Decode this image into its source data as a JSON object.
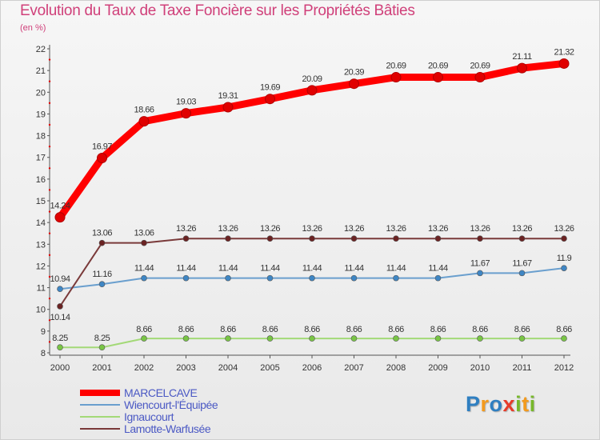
{
  "header": {
    "title": "Evolution du Taux de Taxe Foncière sur les Propriétés Bâties",
    "unit": "(en %)"
  },
  "chart_data": {
    "type": "line",
    "title": "Evolution du Taux de Taxe Foncière sur les Propriétés Bâties",
    "ylabel": "(en %)",
    "xlabel": "",
    "categories": [
      "2000",
      "2001",
      "2002",
      "2003",
      "2004",
      "2005",
      "2006",
      "2007",
      "2008",
      "2009",
      "2010",
      "2011",
      "2012"
    ],
    "ylim": [
      8,
      22
    ],
    "yticks": [
      8,
      9,
      10,
      11,
      12,
      13,
      14,
      15,
      16,
      17,
      18,
      19,
      20,
      21,
      22
    ],
    "grid": false,
    "legend_position": "bottom-left",
    "series": [
      {
        "name": "MARCELCAVE",
        "color": "#ff0000",
        "point_color": "#e00000",
        "values": [
          14.24,
          16.97,
          18.66,
          19.03,
          19.31,
          19.69,
          20.09,
          20.39,
          20.69,
          20.69,
          20.69,
          21.11,
          21.32
        ],
        "labels": [
          "14.24",
          "16.97",
          "18.66",
          "19.03",
          "19.31",
          "19.69",
          "20.09",
          "20.39",
          "20.69",
          "20.69",
          "20.69",
          "21.11",
          "21.32"
        ]
      },
      {
        "name": "Wiencourt-l'Équipée",
        "color": "#6a9fce",
        "point_color": "#3f86c4",
        "values": [
          10.94,
          11.16,
          11.44,
          11.44,
          11.44,
          11.44,
          11.44,
          11.44,
          11.44,
          11.44,
          11.67,
          11.67,
          11.9
        ],
        "labels": [
          "10.94",
          "11.16",
          "11.44",
          "11.44",
          "11.44",
          "11.44",
          "11.44",
          "11.44",
          "11.44",
          "11.44",
          "11.67",
          "11.67",
          "11.9"
        ]
      },
      {
        "name": "Ignaucourt",
        "color": "#a3d977",
        "point_color": "#79c545",
        "values": [
          8.25,
          8.25,
          8.66,
          8.66,
          8.66,
          8.66,
          8.66,
          8.66,
          8.66,
          8.66,
          8.66,
          8.66,
          8.66
        ],
        "labels": [
          "8.25",
          "8.25",
          "8.66",
          "8.66",
          "8.66",
          "8.66",
          "8.66",
          "8.66",
          "8.66",
          "8.66",
          "8.66",
          "8.66",
          "8.66"
        ]
      },
      {
        "name": "Lamotte-Warfusée",
        "color": "#7a3a3a",
        "point_color": "#6b2323",
        "values": [
          10.14,
          13.06,
          13.06,
          13.26,
          13.26,
          13.26,
          13.26,
          13.26,
          13.26,
          13.26,
          13.26,
          13.26,
          13.26
        ],
        "labels": [
          "10.14",
          "13.06",
          "13.06",
          "13.26",
          "13.26",
          "13.26",
          "13.26",
          "13.26",
          "13.26",
          "13.26",
          "13.26",
          "13.26",
          "13.26"
        ]
      }
    ]
  },
  "legend": {
    "items": [
      {
        "label": "MARCELCAVE",
        "color": "#ff0000"
      },
      {
        "label": "Wiencourt-l'Équipée",
        "color": "#6a9fce"
      },
      {
        "label": "Ignaucourt",
        "color": "#a3d977"
      },
      {
        "label": "Lamotte-Warfusée",
        "color": "#7a3a3a"
      }
    ]
  },
  "branding": {
    "letters": [
      {
        "char": "P",
        "color": "#2f7fc1"
      },
      {
        "char": "r",
        "color": "#f39a1e"
      },
      {
        "char": "o",
        "color": "#2f7fc1"
      },
      {
        "char": "x",
        "color": "#e73c2a"
      },
      {
        "char": "i",
        "color": "#77b82a"
      },
      {
        "char": "t",
        "color": "#f39a1e"
      },
      {
        "char": "i",
        "color": "#77b82a"
      }
    ]
  }
}
